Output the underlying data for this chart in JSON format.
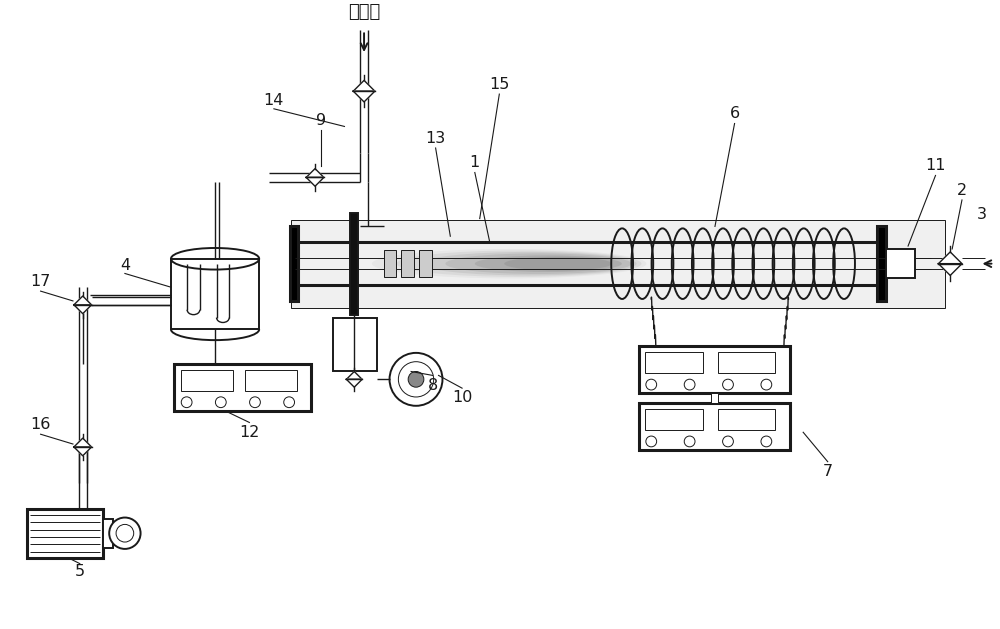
{
  "bg_color": "#ffffff",
  "line_color": "#1a1a1a",
  "air_label": "通空气",
  "labels": [
    "1",
    "2",
    "3",
    "4",
    "5",
    "6",
    "7",
    "8",
    "9",
    "10",
    "11",
    "12",
    "13",
    "14",
    "15",
    "16",
    "17"
  ]
}
